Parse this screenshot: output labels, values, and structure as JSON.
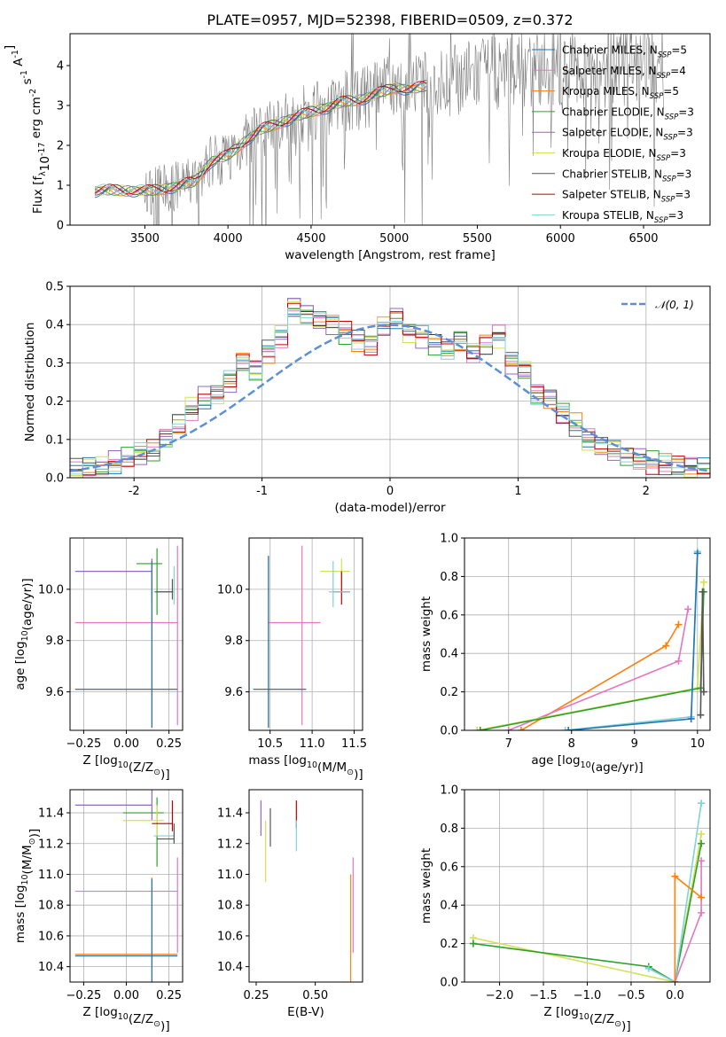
{
  "figure": {
    "title": "PLATE=0957, MJD=52398, FIBERID=0509, z=0.372"
  },
  "colors": {
    "Chabrier MILES": "#1f77b4",
    "Salpeter MILES": "#e377c2",
    "Kroupa MILES": "#ff7f0e",
    "Chabrier ELODIE": "#2ca02c",
    "Salpeter ELODIE": "#9467bd",
    "Kroupa ELODIE": "#d4e157",
    "Chabrier STELIB": "#555555",
    "Salpeter STELIB": "#c00000",
    "Kroupa STELIB": "#7fd3d9",
    "normal": "#5b8fd9",
    "data": "#808080"
  },
  "chart_data": [
    {
      "id": "spectrum",
      "type": "line",
      "xlabel": "wavelength [Angstrom, rest frame]",
      "ylabel": "Flux [f$_\\lambda$10$^{-17}$ erg cm$^{-2}$ s$^{-1}$ A$^{-1}$]",
      "xlim": [
        3050,
        6900
      ],
      "ylim": [
        0,
        4.8
      ],
      "xticks": [
        3500,
        4000,
        4500,
        5000,
        5500,
        6000,
        6500
      ],
      "yticks": [
        0,
        1,
        2,
        3,
        4
      ],
      "legend_position": "top-right",
      "legend": [
        {
          "label": "Chabrier MILES",
          "nssp": "5"
        },
        {
          "label": "Salpeter MILES",
          "nssp": "4"
        },
        {
          "label": "Kroupa MILES",
          "nssp": "5"
        },
        {
          "label": "Chabrier ELODIE",
          "nssp": "3"
        },
        {
          "label": "Salpeter ELODIE",
          "nssp": "3"
        },
        {
          "label": "Kroupa ELODIE",
          "nssp": "3"
        },
        {
          "label": "Chabrier STELIB",
          "nssp": "3"
        },
        {
          "label": "Salpeter STELIB",
          "nssp": "3"
        },
        {
          "label": "Kroupa STELIB",
          "nssp": "3"
        }
      ],
      "legend_prefix": ", N",
      "legend_sub": "SSP",
      "legend_eq": "=",
      "continuum": {
        "x": [
          3200,
          3300,
          3400,
          3500,
          3600,
          3700,
          3800,
          3900,
          4000,
          4100,
          4200,
          4300,
          4400,
          4500,
          4600,
          4700,
          4800,
          4900,
          5000,
          5100,
          5200,
          5300,
          5400,
          5500,
          5600,
          5700,
          5800,
          5900,
          6000,
          6100,
          6200,
          6300,
          6400,
          6500,
          6600
        ],
        "y": [
          0.85,
          0.88,
          0.87,
          0.85,
          0.9,
          0.98,
          1.1,
          1.6,
          1.75,
          2.1,
          2.4,
          2.55,
          2.7,
          2.85,
          2.95,
          3.1,
          3.15,
          3.3,
          3.45,
          3.4,
          3.5,
          3.55,
          3.7,
          3.75,
          3.8,
          3.85,
          3.9,
          3.9,
          3.85,
          3.9,
          3.95,
          3.95,
          3.95,
          4.0,
          3.95
        ]
      }
    },
    {
      "id": "residuals",
      "type": "line",
      "xlabel": "(data-model)/error",
      "ylabel": "Normed distribution",
      "xlim": [
        -2.5,
        2.5
      ],
      "ylim": [
        0,
        0.5
      ],
      "xticks": [
        -2,
        -1,
        0,
        1,
        2
      ],
      "yticks": [
        0.0,
        0.1,
        0.2,
        0.3,
        0.4,
        0.5
      ],
      "ytick_labels": [
        "0.0",
        "0.1",
        "0.2",
        "0.3",
        "0.4",
        "0.5"
      ],
      "legend_label": "N(0,1)",
      "bin_width": 0.1,
      "hist": [
        0.02,
        0.025,
        0.03,
        0.04,
        0.05,
        0.06,
        0.07,
        0.1,
        0.14,
        0.18,
        0.21,
        0.22,
        0.25,
        0.3,
        0.28,
        0.33,
        0.37,
        0.45,
        0.43,
        0.41,
        0.4,
        0.38,
        0.36,
        0.35,
        0.4,
        0.42,
        0.38,
        0.37,
        0.35,
        0.34,
        0.36,
        0.33,
        0.35,
        0.37,
        0.3,
        0.28,
        0.22,
        0.21,
        0.17,
        0.14,
        0.1,
        0.08,
        0.07,
        0.06,
        0.05,
        0.04,
        0.035,
        0.03,
        0.025,
        0.02
      ]
    },
    {
      "id": "age-vs-Z",
      "type": "scatter",
      "xlabel": "Z [log$_{10}$(Z/Z$_\\odot$)]",
      "ylabel": "age  [log$_{10}$(age/yr)]",
      "xlim": [
        -0.33,
        0.33
      ],
      "ylim": [
        9.45,
        10.2
      ],
      "xticks": [
        -0.25,
        0.0,
        0.25
      ],
      "xtick_labels": [
        "−0.25",
        "0.00",
        "0.25"
      ],
      "yticks": [
        9.6,
        9.8,
        10.0
      ],
      "ytick_labels": [
        "9.6",
        "9.8",
        "10.0"
      ],
      "points": [
        {
          "s": "Salpeter ELODIE",
          "x": 0.15,
          "y": 10.07,
          "xerr": [
            0.45,
            0.0
          ],
          "yerr": [
            0.12,
            0.05
          ]
        },
        {
          "s": "Chabrier ELODIE",
          "x": 0.18,
          "y": 10.1,
          "xerr": [
            0.12,
            0.03
          ],
          "yerr": [
            0.2,
            0.06
          ]
        },
        {
          "s": "Kroupa STELIB",
          "x": 0.28,
          "y": 9.99,
          "xerr": [
            0.12,
            0.0
          ],
          "yerr": [
            0.05,
            0.1
          ]
        },
        {
          "s": "Chabrier STELIB",
          "x": 0.27,
          "y": 9.99,
          "xerr": [
            0.1,
            0.0
          ],
          "yerr": [
            0.03,
            0.05
          ]
        },
        {
          "s": "Salpeter MILES",
          "x": 0.3,
          "y": 9.87,
          "xerr": [
            0.6,
            0.0
          ],
          "yerr": [
            0.4,
            0.3
          ]
        },
        {
          "s": "Kroupa MILES",
          "x": 0.15,
          "y": 9.61,
          "xerr": [
            0.45,
            0.15
          ],
          "yerr": [
            0.15,
            0.5
          ]
        },
        {
          "s": "Chabrier MILES",
          "x": 0.15,
          "y": 9.61,
          "xerr": [
            0.45,
            0.15
          ],
          "yerr": [
            0.15,
            0.5
          ]
        }
      ]
    },
    {
      "id": "age-vs-mass",
      "type": "scatter",
      "xlabel": "mass [log$_{10}$(M/M$_\\odot$)]",
      "xlim": [
        10.25,
        11.6
      ],
      "ylim": [
        9.45,
        10.2
      ],
      "xticks": [
        10.5,
        11.0,
        11.5
      ],
      "xtick_labels": [
        "10.5",
        "11.0",
        "11.5"
      ],
      "yticks": [
        9.6,
        9.8,
        10.0
      ],
      "ytick_labels": [
        "9.6",
        "9.8",
        "10.0"
      ],
      "points": [
        {
          "s": "Kroupa ELODIE",
          "x": 11.35,
          "y": 10.07,
          "xerr": [
            0.25,
            0.1
          ],
          "yerr": [
            0.05,
            0.05
          ]
        },
        {
          "s": "Salpeter STELIB",
          "x": 11.35,
          "y": 9.99,
          "xerr": [
            0.1,
            0.1
          ],
          "yerr": [
            0.05,
            0.08
          ]
        },
        {
          "s": "Kroupa STELIB",
          "x": 11.25,
          "y": 9.99,
          "xerr": [
            0.05,
            0.2
          ],
          "yerr": [
            0.06,
            0.12
          ]
        },
        {
          "s": "Salpeter MILES",
          "x": 10.88,
          "y": 9.87,
          "xerr": [
            0.4,
            0.22
          ],
          "yerr": [
            0.4,
            0.3
          ]
        },
        {
          "s": "Kroupa MILES",
          "x": 10.48,
          "y": 9.61,
          "xerr": [
            0.18,
            0.45
          ],
          "yerr": [
            0.15,
            0.52
          ]
        },
        {
          "s": "Chabrier MILES",
          "x": 10.48,
          "y": 9.61,
          "xerr": [
            0.18,
            0.45
          ],
          "yerr": [
            0.15,
            0.52
          ]
        }
      ]
    },
    {
      "id": "mass-weight-vs-age",
      "type": "line",
      "xlabel": "age  [log$_{10}$(age/yr)]",
      "ylabel": "mass weight",
      "xlim": [
        6.3,
        10.2
      ],
      "ylim": [
        0,
        1.0
      ],
      "xticks": [
        7,
        8,
        9,
        10
      ],
      "yticks": [
        0.0,
        0.2,
        0.4,
        0.6,
        0.8,
        1.0
      ],
      "ytick_labels": [
        "0.0",
        "0.2",
        "0.4",
        "0.6",
        "0.8",
        "1.0"
      ],
      "series": [
        {
          "s": "Kroupa MILES",
          "x": [
            7.2,
            9.5,
            9.7
          ],
          "y": [
            0.0,
            0.44,
            0.55
          ]
        },
        {
          "s": "Salpeter MILES",
          "x": [
            7.0,
            9.7,
            9.85
          ],
          "y": [
            0.0,
            0.36,
            0.63
          ]
        },
        {
          "s": "Kroupa ELODIE",
          "x": [
            6.5,
            10.0,
            10.1
          ],
          "y": [
            0.0,
            0.22,
            0.77
          ]
        },
        {
          "s": "Chabrier ELODIE",
          "x": [
            6.55,
            10.05,
            10.1
          ],
          "y": [
            0.0,
            0.22,
            0.72
          ]
        },
        {
          "s": "Chabrier STELIB",
          "x": [
            10.05,
            10.08,
            10.1
          ],
          "y": [
            0.08,
            0.72,
            0.2
          ]
        },
        {
          "s": "Kroupa STELIB",
          "x": [
            7.9,
            9.9,
            10.0
          ],
          "y": [
            0.0,
            0.07,
            0.93
          ]
        },
        {
          "s": "Chabrier MILES",
          "x": [
            7.95,
            9.9,
            10.0
          ],
          "y": [
            0.0,
            0.06,
            0.92
          ]
        }
      ]
    },
    {
      "id": "mass-vs-Z",
      "type": "scatter",
      "xlabel": "Z [log$_{10}$(Z/Z$_\\odot$)]",
      "ylabel": "mass [log$_{10}$(M/M$_\\odot$)]",
      "xlim": [
        -0.33,
        0.33
      ],
      "ylim": [
        10.3,
        11.55
      ],
      "xticks": [
        -0.25,
        0.0,
        0.25
      ],
      "xtick_labels": [
        "−0.25",
        "0.00",
        "0.25"
      ],
      "yticks": [
        10.4,
        10.6,
        10.8,
        11.0,
        11.2,
        11.4
      ],
      "ytick_labels": [
        "10.4",
        "10.6",
        "10.8",
        "11.0",
        "11.2",
        "11.4"
      ],
      "points": [
        {
          "s": "Salpeter ELODIE",
          "x": 0.15,
          "y": 11.45,
          "xerr": [
            0.45,
            0.0
          ],
          "yerr": [
            0.1,
            0.1
          ]
        },
        {
          "s": "Chabrier ELODIE",
          "x": 0.18,
          "y": 11.4,
          "xerr": [
            0.2,
            0.04
          ],
          "yerr": [
            0.35,
            0.1
          ]
        },
        {
          "s": "Kroupa ELODIE",
          "x": 0.18,
          "y": 11.35,
          "xerr": [
            0.2,
            0.04
          ],
          "yerr": [
            0.1,
            0.1
          ]
        },
        {
          "s": "Salpeter STELIB",
          "x": 0.27,
          "y": 11.33,
          "xerr": [
            0.12,
            0.0
          ],
          "yerr": [
            0.05,
            0.15
          ]
        },
        {
          "s": "Kroupa STELIB",
          "x": 0.28,
          "y": 11.25,
          "xerr": [
            0.12,
            0.0
          ],
          "yerr": [
            0.05,
            0.05
          ]
        },
        {
          "s": "Chabrier STELIB",
          "x": 0.28,
          "y": 11.23,
          "xerr": [
            0.1,
            0.0
          ],
          "yerr": [
            0.03,
            0.1
          ]
        },
        {
          "s": "Salpeter MILES",
          "x": 0.3,
          "y": 10.89,
          "xerr": [
            0.6,
            0.0
          ],
          "yerr": [
            0.4,
            0.22
          ]
        },
        {
          "s": "Kroupa MILES",
          "x": 0.15,
          "y": 10.48,
          "xerr": [
            0.45,
            0.15
          ],
          "yerr": [
            0.2,
            0.5
          ]
        },
        {
          "s": "Chabrier MILES",
          "x": 0.15,
          "y": 10.47,
          "xerr": [
            0.45,
            0.15
          ],
          "yerr": [
            0.2,
            0.5
          ]
        }
      ]
    },
    {
      "id": "mass-vs-ebv",
      "type": "scatter",
      "xlabel": "E(B-V)",
      "xlim": [
        0.22,
        0.7
      ],
      "ylim": [
        10.3,
        11.55
      ],
      "xticks": [
        0.25,
        0.5
      ],
      "xtick_labels": [
        "0.25",
        "0.50"
      ],
      "yticks": [
        10.4,
        10.6,
        10.8,
        11.0,
        11.2,
        11.4
      ],
      "ytick_labels": [
        "10.4",
        "10.6",
        "10.8",
        "11.0",
        "11.2",
        "11.4"
      ],
      "points": [
        {
          "s": "Salpeter ELODIE",
          "x": 0.27,
          "y": 11.4,
          "xerr": [
            0,
            0
          ],
          "yerr": [
            0.15,
            0.08
          ]
        },
        {
          "s": "Kroupa ELODIE",
          "x": 0.29,
          "y": 11.2,
          "xerr": [
            0,
            0
          ],
          "yerr": [
            0.25,
            0.15
          ]
        },
        {
          "s": "Chabrier STELIB",
          "x": 0.31,
          "y": 11.33,
          "xerr": [
            0,
            0
          ],
          "yerr": [
            0.15,
            0.1
          ]
        },
        {
          "s": "Salpeter STELIB",
          "x": 0.42,
          "y": 11.4,
          "xerr": [
            0,
            0
          ],
          "yerr": [
            0.1,
            0.08
          ]
        },
        {
          "s": "Kroupa STELIB",
          "x": 0.42,
          "y": 11.25,
          "xerr": [
            0,
            0
          ],
          "yerr": [
            0.1,
            0.1
          ]
        },
        {
          "s": "Salpeter MILES",
          "x": 0.66,
          "y": 10.89,
          "xerr": [
            0,
            0
          ],
          "yerr": [
            0.4,
            0.22
          ]
        },
        {
          "s": "Kroupa MILES",
          "x": 0.65,
          "y": 10.5,
          "xerr": [
            0,
            0
          ],
          "yerr": [
            0.2,
            0.5
          ]
        }
      ]
    },
    {
      "id": "mass-weight-vs-Z",
      "type": "line",
      "xlabel": "Z [log$_{10}$(Z/Z$_\\odot$)]",
      "ylabel": "mass weight",
      "xlim": [
        -2.4,
        0.4
      ],
      "ylim": [
        0,
        1.0
      ],
      "xticks": [
        -2.0,
        -1.5,
        -1.0,
        -0.5,
        0.0
      ],
      "xtick_labels": [
        "−2.0",
        "−1.5",
        "−1.0",
        "−0.5",
        "0.0"
      ],
      "yticks": [
        0.0,
        0.2,
        0.4,
        0.6,
        0.8,
        1.0
      ],
      "ytick_labels": [
        "0.0",
        "0.2",
        "0.4",
        "0.6",
        "0.8",
        "1.0"
      ],
      "series": [
        {
          "s": "Kroupa ELODIE",
          "x": [
            -2.3,
            0.0,
            0.3
          ],
          "y": [
            0.23,
            0.0,
            0.77
          ]
        },
        {
          "s": "Chabrier ELODIE",
          "x": [
            -2.3,
            -0.3,
            0.0,
            0.3
          ],
          "y": [
            0.2,
            0.08,
            0.0,
            0.72
          ]
        },
        {
          "s": "Kroupa STELIB",
          "x": [
            -0.3,
            0.0,
            0.3
          ],
          "y": [
            0.07,
            0.0,
            0.93
          ]
        },
        {
          "s": "Salpeter MILES",
          "x": [
            0.0,
            0.3,
            0.3
          ],
          "y": [
            0.0,
            0.36,
            0.63
          ]
        },
        {
          "s": "Kroupa MILES",
          "x": [
            0.0,
            0.0,
            0.3
          ],
          "y": [
            0.0,
            0.55,
            0.44
          ]
        }
      ]
    }
  ]
}
